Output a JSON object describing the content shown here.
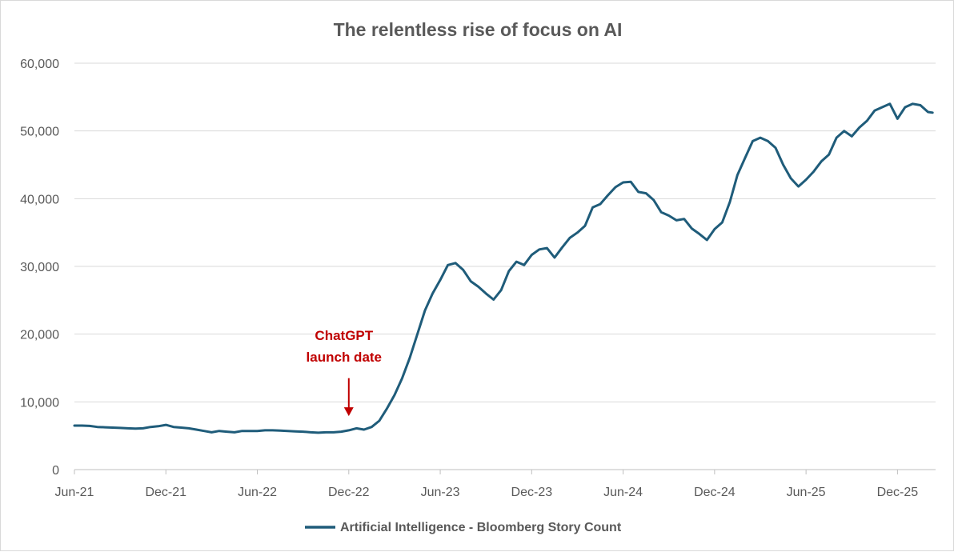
{
  "chart_data": {
    "type": "line",
    "title": "The relentless rise of focus on AI",
    "xlabel": "",
    "ylabel": "",
    "ylim": [
      0,
      60000
    ],
    "y_ticks": [
      0,
      10000,
      20000,
      30000,
      40000,
      50000,
      60000
    ],
    "y_tick_labels": [
      "0",
      "10,000",
      "20,000",
      "30,000",
      "40,000",
      "50,000",
      "60,000"
    ],
    "x_unit": "months since Jun-21",
    "xlim": [
      0,
      56.5
    ],
    "x_ticks": [
      0,
      6,
      12,
      18,
      24,
      30,
      36,
      42,
      48,
      54
    ],
    "x_tick_labels": [
      "Jun-21",
      "Dec-21",
      "Jun-22",
      "Dec-22",
      "Jun-23",
      "Dec-23",
      "Jun-24",
      "Dec-24",
      "Jun-25",
      "Dec-25"
    ],
    "legend": {
      "position": "bottom-center"
    },
    "grid": true,
    "series": [
      {
        "name": "Artificial Intelligence - Bloomberg Story Count",
        "color": "#1f5c7a",
        "x": [
          0,
          0.5,
          1,
          1.5,
          2,
          2.5,
          3,
          3.5,
          4,
          4.5,
          5,
          5.5,
          6,
          6.5,
          7,
          7.5,
          8,
          8.5,
          9,
          9.5,
          10,
          10.5,
          11,
          11.5,
          12,
          12.5,
          13,
          13.5,
          14,
          14.5,
          15,
          15.5,
          16,
          16.5,
          17,
          17.5,
          18,
          18.5,
          19,
          19.5,
          20,
          20.5,
          21,
          21.5,
          22,
          22.5,
          23,
          23.5,
          24,
          24.5,
          25,
          25.5,
          26,
          26.5,
          27,
          27.5,
          28,
          28.5,
          29,
          29.5,
          30,
          30.5,
          31,
          31.5,
          32,
          32.5,
          33,
          33.5,
          34,
          34.5,
          35,
          35.5,
          36,
          36.5,
          37,
          37.5,
          38,
          38.5,
          39,
          39.5,
          40,
          40.5,
          41,
          41.5,
          42,
          42.5,
          43,
          43.5,
          44,
          44.5,
          45,
          45.5,
          46,
          46.5,
          47,
          47.5,
          48,
          48.5,
          49,
          49.5,
          50,
          50.5,
          51,
          51.5,
          52,
          52.5,
          53,
          53.5,
          54,
          54.5,
          55,
          55.5,
          56,
          56.3
        ],
        "values": [
          6500,
          6500,
          6450,
          6300,
          6250,
          6200,
          6150,
          6100,
          6050,
          6100,
          6300,
          6400,
          6600,
          6300,
          6200,
          6100,
          5900,
          5700,
          5500,
          5700,
          5600,
          5500,
          5700,
          5700,
          5700,
          5800,
          5800,
          5750,
          5700,
          5650,
          5600,
          5500,
          5450,
          5500,
          5500,
          5600,
          5800,
          6100,
          5900,
          6300,
          7200,
          9000,
          11000,
          13500,
          16500,
          20000,
          23500,
          26000,
          28000,
          30200,
          30500,
          29500,
          27800,
          27000,
          26000,
          25100,
          26500,
          29300,
          30700,
          30200,
          31700,
          32500,
          32700,
          31300,
          32800,
          34200,
          35000,
          36000,
          38700,
          39200,
          40500,
          41700,
          42400,
          42500,
          41000,
          40800,
          39800,
          38000,
          37500,
          36800,
          37000,
          35600,
          34800,
          33900,
          35500,
          36500,
          39500,
          43500,
          46000,
          48500,
          49000,
          48500,
          47500,
          45000,
          43000,
          41800,
          42800,
          44000,
          45500,
          46500,
          49000,
          50000,
          49200,
          50500,
          51500,
          53000,
          53500,
          54000,
          51800,
          53500,
          54000,
          53800,
          52800,
          52700
        ]
      }
    ],
    "annotation": {
      "label_line1": "ChatGPT",
      "label_line2": "launch date",
      "color": "#c00000",
      "arrow_x": 18,
      "arrow_y_from": 13500,
      "arrow_y_to": 7900
    }
  }
}
